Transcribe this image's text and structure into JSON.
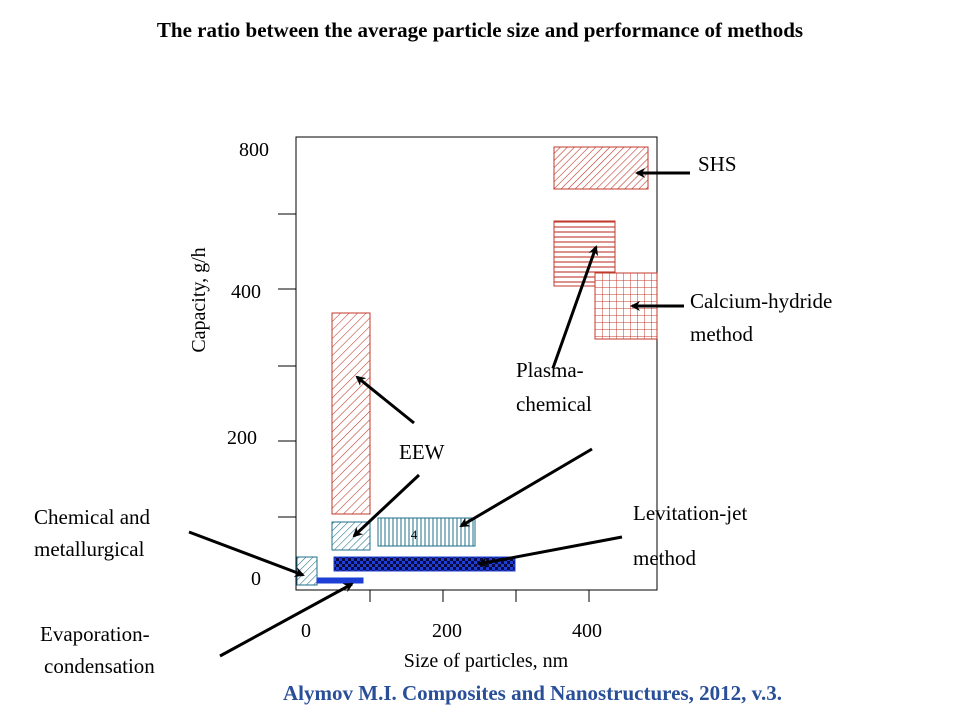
{
  "title": "The ratio between the average particle size and performance of methods",
  "citation": "Alymov M.I. Composites and Nanostructures, 2012, v.3.",
  "chart_data": {
    "type": "bar",
    "xlabel": "Size of particles, nm",
    "ylabel": "Capacity, g/h",
    "x_tick_labels": [
      "0",
      "200",
      "400"
    ],
    "y_tick_labels": [
      "0",
      "200",
      "400",
      "800"
    ],
    "methods": [
      {
        "name": "SHS",
        "label": "SHS",
        "x_range": [
          350,
          480
        ],
        "capacity_range": [
          800,
          990
        ],
        "color": "#c0392b",
        "pattern": "diagonal-dense"
      },
      {
        "name": "Plasma-chemical",
        "label": "Plasma-|chemical",
        "x_range": [
          350,
          440
        ],
        "capacity_range": [
          435,
          560
        ],
        "color": "#c0392b",
        "pattern": "horizontal-lines"
      },
      {
        "name": "Calcium-hydride method",
        "label": "Calcium-hydride|method",
        "x_range": [
          410,
          495
        ],
        "capacity_range": [
          340,
          430
        ],
        "color": "#c0392b",
        "pattern": "grid"
      },
      {
        "name": "EEW",
        "label": "EEW",
        "x_range": [
          50,
          105
        ],
        "capacity_range": [
          125,
          485
        ],
        "color": "#c0392b",
        "pattern": "diagonal"
      },
      {
        "name": "EEW (low)",
        "label": "",
        "x_range": [
          50,
          105
        ],
        "capacity_range": [
          60,
          105
        ],
        "color": "#1f6f8b",
        "pattern": "diagonal"
      },
      {
        "name": "Levitation-jet method (upper)",
        "label": "",
        "x_range": [
          110,
          245
        ],
        "capacity_range": [
          75,
          120
        ],
        "color": "#1f6f8b",
        "pattern": "vertical-lines"
      },
      {
        "name": "Levitation-jet method",
        "label": "Levitation-jet|method",
        "x_range": [
          50,
          300
        ],
        "capacity_range": [
          28,
          50
        ],
        "color": "#1d3fd6",
        "pattern": "checker"
      },
      {
        "name": "Chemical and metallurgical",
        "label": "Chemical and|metallurgical",
        "x_range": [
          0,
          30
        ],
        "capacity_range": [
          12,
          52
        ],
        "color": "#1f6f8b",
        "pattern": "diagonal"
      },
      {
        "name": "Evaporation-condensation",
        "label": "Evaporation-|condensation",
        "x_range": [
          30,
          95
        ],
        "capacity_range": [
          8,
          15
        ],
        "color": "#1d3fd6",
        "pattern": "solid"
      }
    ],
    "inner_mark": "4"
  }
}
